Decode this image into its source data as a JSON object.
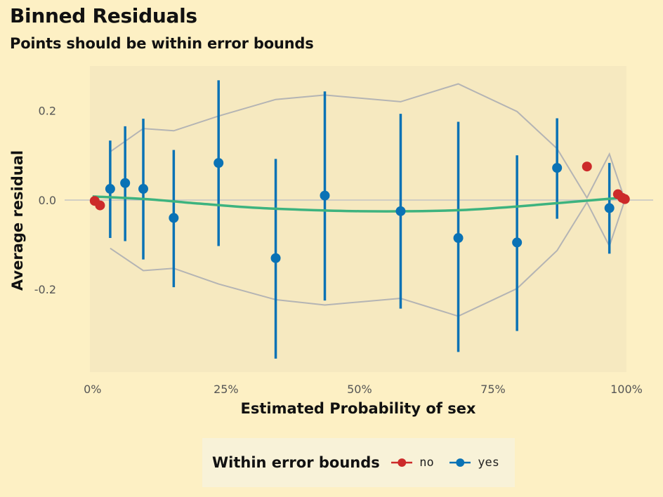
{
  "title": "Binned Residuals",
  "subtitle": "Points should be within error bounds",
  "legend": {
    "title": "Within error bounds",
    "items": [
      {
        "label": "no",
        "color": "#cc2a2a"
      },
      {
        "label": "yes",
        "color": "#0a72b5"
      }
    ]
  },
  "chart_data": {
    "type": "scatter",
    "xlabel": "Estimated Probability of sex",
    "ylabel": "Average residual",
    "xlim": [
      -0.005,
      1.0
    ],
    "ylim": [
      -0.385,
      0.3
    ],
    "x_ticks": [
      {
        "value": 0.0,
        "label": "0%"
      },
      {
        "value": 0.25,
        "label": "25%"
      },
      {
        "value": 0.5,
        "label": "50%"
      },
      {
        "value": 0.75,
        "label": "75%"
      },
      {
        "value": 1.0,
        "label": "100%"
      }
    ],
    "y_ticks": [
      {
        "value": 0.2,
        "label": "0.2"
      },
      {
        "value": 0.0,
        "label": "0.0"
      },
      {
        "value": -0.2,
        "label": "-0.2"
      }
    ],
    "colors": {
      "no": "#cc2a2a",
      "yes": "#0a72b5",
      "trend": "#3db37f",
      "bounds": "#b4b4b4",
      "zero_line": "#c4c4c4",
      "panel": "#f6e9c0"
    },
    "points": [
      {
        "x": 0.004,
        "y": -0.002,
        "group": "no"
      },
      {
        "x": 0.014,
        "y": -0.012,
        "group": "no"
      },
      {
        "x": 0.033,
        "y": 0.025,
        "ymin": -0.085,
        "ymax": 0.133,
        "group": "yes"
      },
      {
        "x": 0.061,
        "y": 0.038,
        "ymin": -0.092,
        "ymax": 0.165,
        "group": "yes"
      },
      {
        "x": 0.095,
        "y": 0.025,
        "ymin": -0.133,
        "ymax": 0.182,
        "group": "yes"
      },
      {
        "x": 0.152,
        "y": -0.04,
        "ymin": -0.195,
        "ymax": 0.112,
        "group": "yes"
      },
      {
        "x": 0.236,
        "y": 0.083,
        "ymin": -0.103,
        "ymax": 0.268,
        "group": "yes"
      },
      {
        "x": 0.343,
        "y": -0.13,
        "ymin": -0.355,
        "ymax": 0.092,
        "group": "yes"
      },
      {
        "x": 0.435,
        "y": 0.01,
        "ymin": -0.225,
        "ymax": 0.243,
        "group": "yes"
      },
      {
        "x": 0.577,
        "y": -0.025,
        "ymin": -0.243,
        "ymax": 0.193,
        "group": "yes"
      },
      {
        "x": 0.685,
        "y": -0.085,
        "ymin": -0.34,
        "ymax": 0.175,
        "group": "yes"
      },
      {
        "x": 0.795,
        "y": -0.095,
        "ymin": -0.293,
        "ymax": 0.1,
        "group": "yes"
      },
      {
        "x": 0.87,
        "y": 0.072,
        "ymin": -0.042,
        "ymax": 0.183,
        "group": "yes"
      },
      {
        "x": 0.926,
        "y": 0.075,
        "group": "no"
      },
      {
        "x": 0.968,
        "y": -0.018,
        "ymin": -0.12,
        "ymax": 0.083,
        "group": "yes"
      },
      {
        "x": 0.984,
        "y": 0.013,
        "group": "no"
      },
      {
        "x": 0.992,
        "y": 0.005,
        "group": "no"
      },
      {
        "x": 0.997,
        "y": 0.002,
        "group": "no"
      }
    ],
    "upper_bound": [
      {
        "x": 0.033,
        "y": 0.108
      },
      {
        "x": 0.095,
        "y": 0.16
      },
      {
        "x": 0.152,
        "y": 0.155
      },
      {
        "x": 0.236,
        "y": 0.188
      },
      {
        "x": 0.343,
        "y": 0.225
      },
      {
        "x": 0.435,
        "y": 0.235
      },
      {
        "x": 0.577,
        "y": 0.22
      },
      {
        "x": 0.685,
        "y": 0.26
      },
      {
        "x": 0.795,
        "y": 0.198
      },
      {
        "x": 0.87,
        "y": 0.115
      },
      {
        "x": 0.926,
        "y": 0.005
      },
      {
        "x": 0.968,
        "y": 0.103
      },
      {
        "x": 0.997,
        "y": 0.0
      }
    ],
    "lower_bound": [
      {
        "x": 0.033,
        "y": -0.108
      },
      {
        "x": 0.095,
        "y": -0.158
      },
      {
        "x": 0.152,
        "y": -0.153
      },
      {
        "x": 0.236,
        "y": -0.188
      },
      {
        "x": 0.343,
        "y": -0.223
      },
      {
        "x": 0.435,
        "y": -0.235
      },
      {
        "x": 0.577,
        "y": -0.22
      },
      {
        "x": 0.685,
        "y": -0.26
      },
      {
        "x": 0.795,
        "y": -0.198
      },
      {
        "x": 0.87,
        "y": -0.113
      },
      {
        "x": 0.926,
        "y": -0.005
      },
      {
        "x": 0.968,
        "y": -0.103
      },
      {
        "x": 0.997,
        "y": 0.0
      }
    ],
    "trend": [
      {
        "x": 0.0,
        "y": 0.008
      },
      {
        "x": 0.1,
        "y": 0.002
      },
      {
        "x": 0.2,
        "y": -0.008
      },
      {
        "x": 0.3,
        "y": -0.017
      },
      {
        "x": 0.4,
        "y": -0.022
      },
      {
        "x": 0.5,
        "y": -0.025
      },
      {
        "x": 0.6,
        "y": -0.025
      },
      {
        "x": 0.7,
        "y": -0.022
      },
      {
        "x": 0.8,
        "y": -0.014
      },
      {
        "x": 0.9,
        "y": -0.004
      },
      {
        "x": 1.0,
        "y": 0.006
      }
    ]
  }
}
